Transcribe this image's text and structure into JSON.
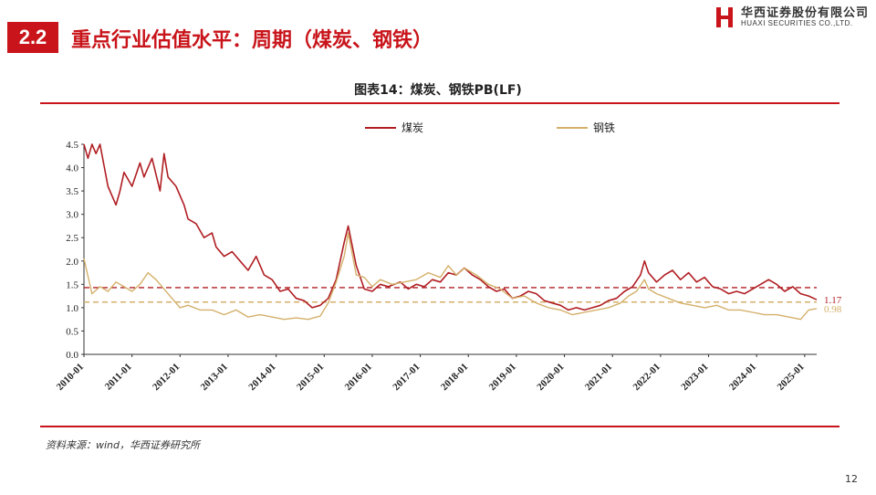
{
  "header": {
    "section_number": "2.2",
    "title": "重点行业估值水平：周期（煤炭、钢铁）",
    "logo_cn": "华西证券股份有限公司",
    "logo_en": "HUAXI SECURITIES CO.,LTD.",
    "brand_color": "#c8141a"
  },
  "chart_data": {
    "type": "line",
    "title": "图表14：煤炭、钢铁PB(LF)",
    "xlabel": "",
    "ylabel": "",
    "x_start": "2010-01",
    "x_end": "2025-04",
    "ylim": [
      0,
      4.5
    ],
    "yticks": [
      "0.0",
      "0.5",
      "1.0",
      "1.5",
      "2.0",
      "2.5",
      "3.0",
      "3.5",
      "4.0",
      "4.5"
    ],
    "xticks": [
      "2010-01",
      "2011-01",
      "2012-01",
      "2013-01",
      "2014-01",
      "2015-01",
      "2016-01",
      "2017-01",
      "2018-01",
      "2019-01",
      "2020-01",
      "2021-01",
      "2022-01",
      "2023-01",
      "2024-01",
      "2025-01"
    ],
    "legend_position": "top-center",
    "grid": false,
    "series": [
      {
        "name": "煤炭",
        "color": "#b01e23",
        "x": [
          "2010-01",
          "2010-02",
          "2010-03",
          "2010-04",
          "2010-05",
          "2010-07",
          "2010-09",
          "2010-10",
          "2010-11",
          "2011-01",
          "2011-03",
          "2011-04",
          "2011-06",
          "2011-08",
          "2011-09",
          "2011-10",
          "2011-12",
          "2012-02",
          "2012-03",
          "2012-05",
          "2012-07",
          "2012-09",
          "2012-10",
          "2012-12",
          "2013-02",
          "2013-04",
          "2013-06",
          "2013-08",
          "2013-10",
          "2013-12",
          "2014-02",
          "2014-04",
          "2014-06",
          "2014-08",
          "2014-10",
          "2014-12",
          "2015-02",
          "2015-04",
          "2015-06",
          "2015-07",
          "2015-09",
          "2015-11",
          "2016-01",
          "2016-03",
          "2016-05",
          "2016-08",
          "2016-10",
          "2016-12",
          "2017-02",
          "2017-04",
          "2017-06",
          "2017-08",
          "2017-10",
          "2017-12",
          "2018-02",
          "2018-04",
          "2018-06",
          "2018-08",
          "2018-10",
          "2018-12",
          "2019-02",
          "2019-04",
          "2019-06",
          "2019-08",
          "2019-10",
          "2019-12",
          "2020-02",
          "2020-04",
          "2020-06",
          "2020-08",
          "2020-10",
          "2020-12",
          "2021-02",
          "2021-04",
          "2021-06",
          "2021-08",
          "2021-09",
          "2021-10",
          "2021-12",
          "2022-02",
          "2022-04",
          "2022-06",
          "2022-08",
          "2022-10",
          "2022-12",
          "2023-02",
          "2023-04",
          "2023-06",
          "2023-08",
          "2023-10",
          "2023-12",
          "2024-02",
          "2024-04",
          "2024-06",
          "2024-08",
          "2024-10",
          "2024-12",
          "2025-02",
          "2025-04"
        ],
        "values": [
          4.5,
          4.2,
          4.5,
          4.3,
          4.5,
          3.6,
          3.2,
          3.5,
          3.9,
          3.6,
          4.1,
          3.8,
          4.2,
          3.5,
          4.3,
          3.8,
          3.6,
          3.2,
          2.9,
          2.8,
          2.5,
          2.6,
          2.3,
          2.1,
          2.2,
          2.0,
          1.8,
          2.1,
          1.7,
          1.6,
          1.35,
          1.4,
          1.2,
          1.15,
          1.0,
          1.05,
          1.2,
          1.6,
          2.4,
          2.75,
          1.9,
          1.4,
          1.35,
          1.5,
          1.45,
          1.55,
          1.4,
          1.5,
          1.45,
          1.6,
          1.55,
          1.75,
          1.7,
          1.85,
          1.7,
          1.6,
          1.45,
          1.35,
          1.4,
          1.2,
          1.25,
          1.35,
          1.3,
          1.15,
          1.1,
          1.05,
          0.95,
          1.0,
          0.95,
          1.0,
          1.05,
          1.15,
          1.2,
          1.35,
          1.45,
          1.7,
          2.0,
          1.75,
          1.55,
          1.7,
          1.8,
          1.6,
          1.75,
          1.55,
          1.65,
          1.45,
          1.4,
          1.3,
          1.35,
          1.3,
          1.4,
          1.5,
          1.6,
          1.5,
          1.35,
          1.45,
          1.3,
          1.25,
          1.17
        ]
      },
      {
        "name": "钢铁",
        "color": "#d4b06a",
        "x": [
          "2010-01",
          "2010-03",
          "2010-05",
          "2010-07",
          "2010-09",
          "2010-11",
          "2011-01",
          "2011-03",
          "2011-05",
          "2011-07",
          "2011-09",
          "2011-11",
          "2012-01",
          "2012-03",
          "2012-06",
          "2012-09",
          "2012-12",
          "2013-03",
          "2013-06",
          "2013-09",
          "2013-12",
          "2014-03",
          "2014-06",
          "2014-09",
          "2014-12",
          "2015-02",
          "2015-04",
          "2015-06",
          "2015-07",
          "2015-09",
          "2015-11",
          "2016-01",
          "2016-03",
          "2016-06",
          "2016-09",
          "2016-12",
          "2017-03",
          "2017-06",
          "2017-08",
          "2017-10",
          "2017-12",
          "2018-03",
          "2018-06",
          "2018-09",
          "2018-12",
          "2019-03",
          "2019-06",
          "2019-09",
          "2019-12",
          "2020-03",
          "2020-06",
          "2020-09",
          "2020-12",
          "2021-03",
          "2021-05",
          "2021-07",
          "2021-09",
          "2021-10",
          "2021-12",
          "2022-03",
          "2022-06",
          "2022-09",
          "2022-12",
          "2023-03",
          "2023-06",
          "2023-09",
          "2023-12",
          "2024-03",
          "2024-06",
          "2024-09",
          "2024-12",
          "2025-02",
          "2025-04"
        ],
        "values": [
          2.05,
          1.3,
          1.45,
          1.35,
          1.55,
          1.45,
          1.35,
          1.5,
          1.75,
          1.6,
          1.4,
          1.2,
          1.0,
          1.05,
          0.95,
          0.95,
          0.85,
          0.95,
          0.8,
          0.85,
          0.8,
          0.75,
          0.78,
          0.75,
          0.82,
          1.1,
          1.55,
          2.1,
          2.6,
          1.7,
          1.65,
          1.45,
          1.6,
          1.5,
          1.55,
          1.6,
          1.75,
          1.65,
          1.9,
          1.7,
          1.85,
          1.7,
          1.5,
          1.4,
          1.2,
          1.25,
          1.1,
          1.0,
          0.95,
          0.85,
          0.9,
          0.95,
          1.0,
          1.1,
          1.25,
          1.35,
          1.6,
          1.4,
          1.3,
          1.2,
          1.1,
          1.05,
          1.0,
          1.05,
          0.95,
          0.95,
          0.9,
          0.85,
          0.85,
          0.8,
          0.75,
          0.95,
          0.98
        ]
      }
    ],
    "reference_lines": [
      {
        "series": "煤炭",
        "value": 1.43,
        "color": "#b01e23"
      },
      {
        "series": "钢铁",
        "value": 1.12,
        "color": "#d4b06a"
      }
    ],
    "end_labels": [
      {
        "series": "煤炭",
        "text": "1.17",
        "color": "#b01e23"
      },
      {
        "series": "钢铁",
        "text": "0.98",
        "color": "#d4b06a"
      }
    ]
  },
  "footer": {
    "source": "资料来源：wind，华西证券研究所",
    "page_number": "12"
  }
}
